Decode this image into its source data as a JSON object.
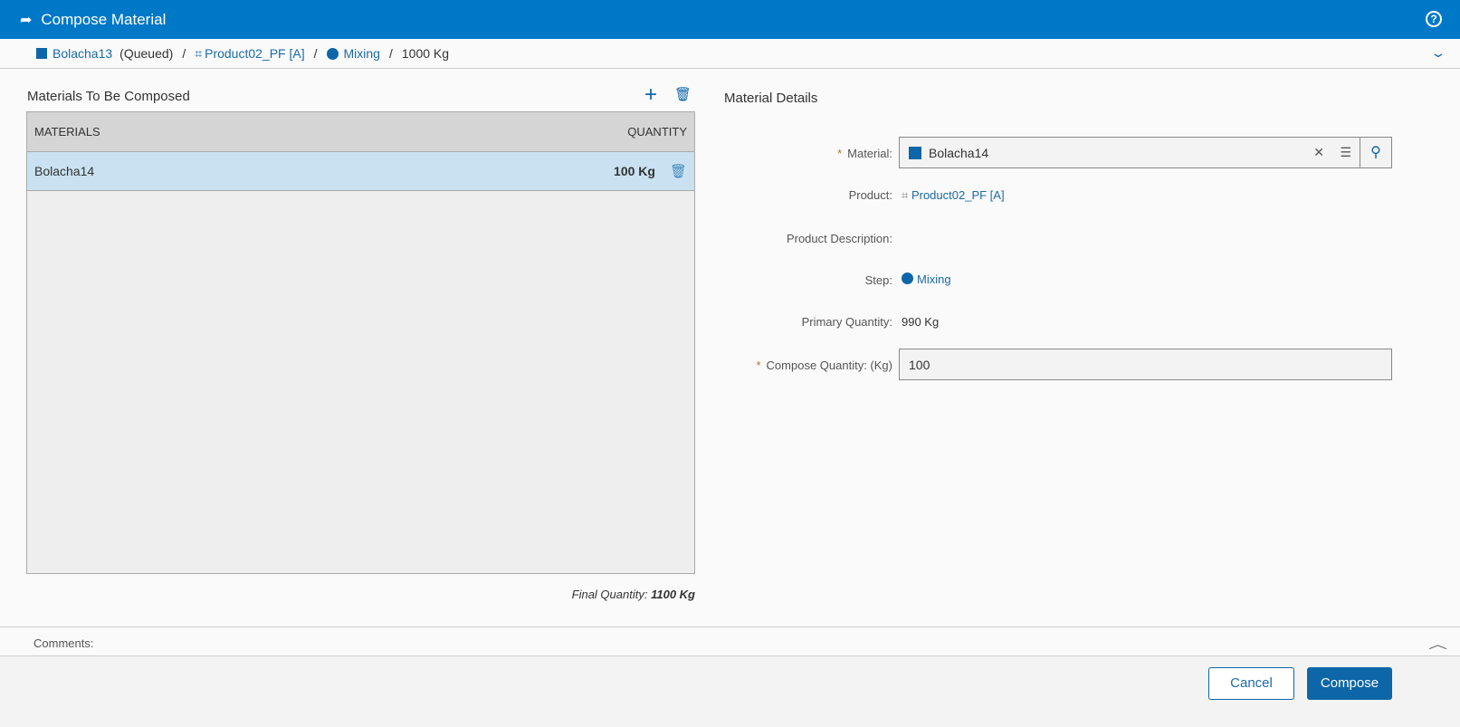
{
  "header": {
    "title": "Compose Material",
    "icon": "compose-arrow-icon",
    "help_icon": "help-icon"
  },
  "breadcrumb": {
    "material": "Bolacha13",
    "state": "(Queued)",
    "product": "Product02_PF [A]",
    "step": "Mixing",
    "quantity": "1000 Kg"
  },
  "left": {
    "title": "Materials To Be Composed",
    "columns": [
      "MATERIALS",
      "QUANTITY"
    ],
    "rows": [
      {
        "material": "Bolacha14",
        "quantity": "100 Kg"
      }
    ],
    "final_label": "Final Quantity:",
    "final_value": "1100 Kg"
  },
  "right": {
    "title": "Material Details",
    "material_label": "Material:",
    "material_value": "Bolacha14",
    "product_label": "Product:",
    "product_value": "Product02_PF [A]",
    "desc_label": "Product Description:",
    "step_label": "Step:",
    "step_value": "Mixing",
    "primary_label": "Primary Quantity:",
    "primary_value": "990 Kg",
    "compose_label": "Compose Quantity: (Kg)",
    "compose_value": "100"
  },
  "comments": {
    "label": "Comments:"
  },
  "footer": {
    "cancel": "Cancel",
    "compose": "Compose"
  },
  "colors": {
    "header": "#0078c8",
    "accent": "#0d66a8",
    "selected_row": "#c9e1f1"
  }
}
